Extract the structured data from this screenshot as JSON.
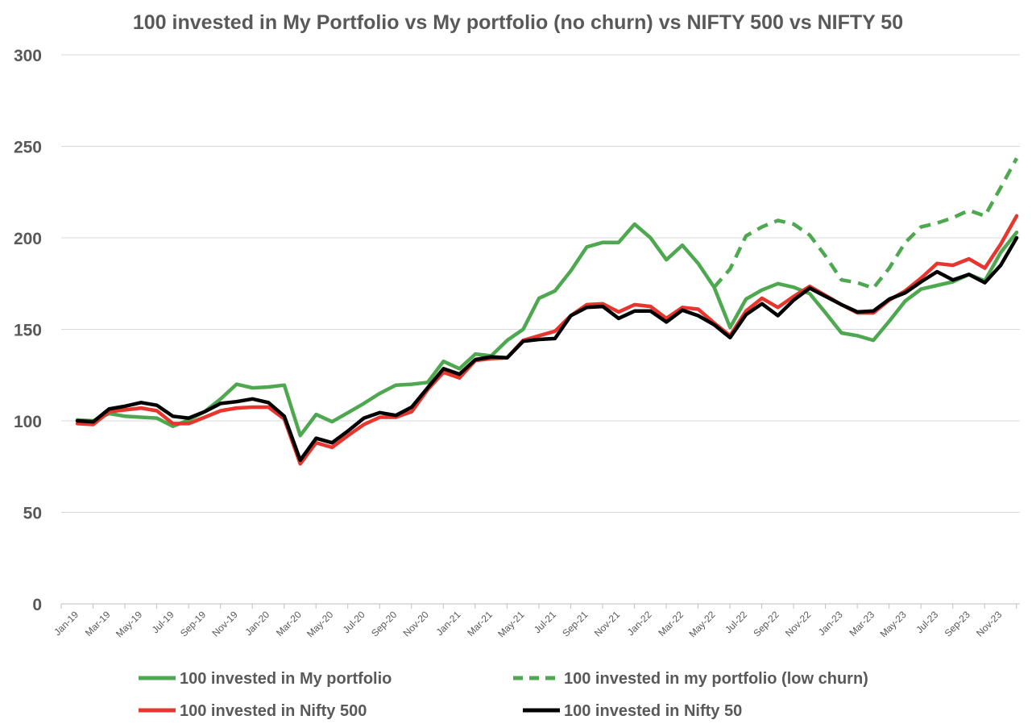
{
  "chart_data": {
    "type": "line",
    "title": "100 invested in My Portfolio vs My portfolio (no churn) vs NIFTY 500 vs NIFTY 50",
    "xlabel": "",
    "ylabel": "",
    "ylim": [
      0,
      300
    ],
    "yticks": [
      "0",
      "50",
      "100",
      "150",
      "200",
      "250",
      "300"
    ],
    "grid": true,
    "legend_position": "bottom",
    "categories": [
      "Jan-19",
      "Feb-19",
      "Mar-19",
      "Apr-19",
      "May-19",
      "Jun-19",
      "Jul-19",
      "Aug-19",
      "Sep-19",
      "Oct-19",
      "Nov-19",
      "Dec-19",
      "Jan-20",
      "Feb-20",
      "Mar-20",
      "Apr-20",
      "May-20",
      "Jun-20",
      "Jul-20",
      "Aug-20",
      "Sep-20",
      "Oct-20",
      "Nov-20",
      "Dec-20",
      "Jan-21",
      "Feb-21",
      "Mar-21",
      "Apr-21",
      "May-21",
      "Jun-21",
      "Jul-21",
      "Aug-21",
      "Sep-21",
      "Oct-21",
      "Nov-21",
      "Dec-21",
      "Jan-22",
      "Feb-22",
      "Mar-22",
      "Apr-22",
      "May-22",
      "Jun-22",
      "Jul-22",
      "Aug-22",
      "Sep-22",
      "Oct-22",
      "Nov-22",
      "Dec-22",
      "Jan-23",
      "Feb-23",
      "Mar-23",
      "Apr-23",
      "May-23",
      "Jun-23",
      "Jul-23",
      "Aug-23",
      "Sep-23",
      "Oct-23",
      "Nov-23",
      "Dec-23"
    ],
    "tick_labels": [
      "Jan-19",
      "Mar-19",
      "May-19",
      "Jul-19",
      "Sep-19",
      "Nov-19",
      "Jan-20",
      "Mar-20",
      "May-20",
      "Jul-20",
      "Sep-20",
      "Nov-20",
      "Jan-21",
      "Mar-21",
      "May-21",
      "Jul-21",
      "Sep-21",
      "Nov-21",
      "Jan-22",
      "Mar-22",
      "May-22",
      "Jul-22",
      "Sep-22",
      "Nov-22",
      "Jan-23",
      "Mar-23",
      "May-23",
      "Jul-23",
      "Sep-23",
      "Nov-23"
    ],
    "series": [
      {
        "name": "100 invested in My portfolio",
        "color": "#4ea84f",
        "dash": "solid",
        "values": [
          100.5,
          100,
          104,
          102.5,
          102,
          101.5,
          97,
          100.5,
          105,
          112,
          120,
          118,
          118.5,
          119.5,
          92,
          103.5,
          99.5,
          104.5,
          109.5,
          115,
          119.5,
          120,
          121,
          132.5,
          128.5,
          136.5,
          135.5,
          144,
          150,
          167,
          171,
          182,
          195,
          197.5,
          197.5,
          207.5,
          200,
          188,
          196,
          186,
          173,
          151,
          166.5,
          171.5,
          175,
          173,
          169.5,
          159,
          148,
          146.5,
          144,
          154.5,
          165.5,
          172,
          174,
          176,
          180,
          176.5,
          192,
          203
        ]
      },
      {
        "name": "100 invested in my portfolio (low churn)",
        "color": "#4ea84f",
        "dash": "dashed",
        "values": [
          null,
          null,
          null,
          null,
          null,
          null,
          null,
          null,
          null,
          null,
          null,
          null,
          null,
          null,
          null,
          null,
          null,
          null,
          null,
          null,
          null,
          null,
          null,
          null,
          null,
          null,
          null,
          null,
          null,
          null,
          null,
          null,
          null,
          null,
          null,
          null,
          null,
          null,
          null,
          null,
          173,
          183,
          201,
          206,
          209.5,
          207.5,
          201.5,
          190,
          177,
          175.5,
          172.5,
          183.5,
          197.5,
          206,
          208,
          211,
          215,
          212,
          227.5,
          243.5
        ]
      },
      {
        "name": "100 invested in Nifty 500",
        "color": "#e8352e",
        "dash": "solid",
        "values": [
          98.5,
          98,
          105,
          106,
          107,
          105.5,
          98.5,
          98.5,
          102,
          105.5,
          107,
          107.5,
          107.5,
          101,
          76.5,
          88,
          85.5,
          92,
          98,
          102,
          102,
          105,
          117,
          126.5,
          123.5,
          133,
          134,
          134.5,
          144,
          146.5,
          149,
          157.5,
          163.5,
          164,
          159.5,
          163.5,
          162.5,
          156,
          162,
          161,
          153.5,
          146.5,
          160,
          167,
          162,
          168,
          173.5,
          168.5,
          163.5,
          159,
          159,
          166,
          171,
          178,
          186,
          185,
          188.5,
          183.5,
          196.5,
          212
        ]
      },
      {
        "name": "100 invested in Nifty 50",
        "color": "#000000",
        "dash": "solid",
        "values": [
          100,
          99.5,
          106.5,
          108,
          110,
          108.5,
          102.5,
          101.5,
          105,
          109.5,
          110.5,
          112,
          110,
          102.5,
          78.5,
          90.5,
          88,
          94.5,
          101.5,
          104.5,
          103,
          107.5,
          118,
          128.5,
          125.5,
          133.5,
          135,
          134.5,
          143.5,
          144.5,
          145,
          157.5,
          162,
          162.5,
          156,
          160,
          160,
          154,
          160.5,
          157.5,
          152.5,
          145.5,
          158,
          164,
          157.5,
          166,
          172.5,
          168,
          163.5,
          159.5,
          160,
          166.5,
          170,
          176,
          181.5,
          177,
          180,
          175.5,
          185,
          200
        ]
      }
    ]
  }
}
